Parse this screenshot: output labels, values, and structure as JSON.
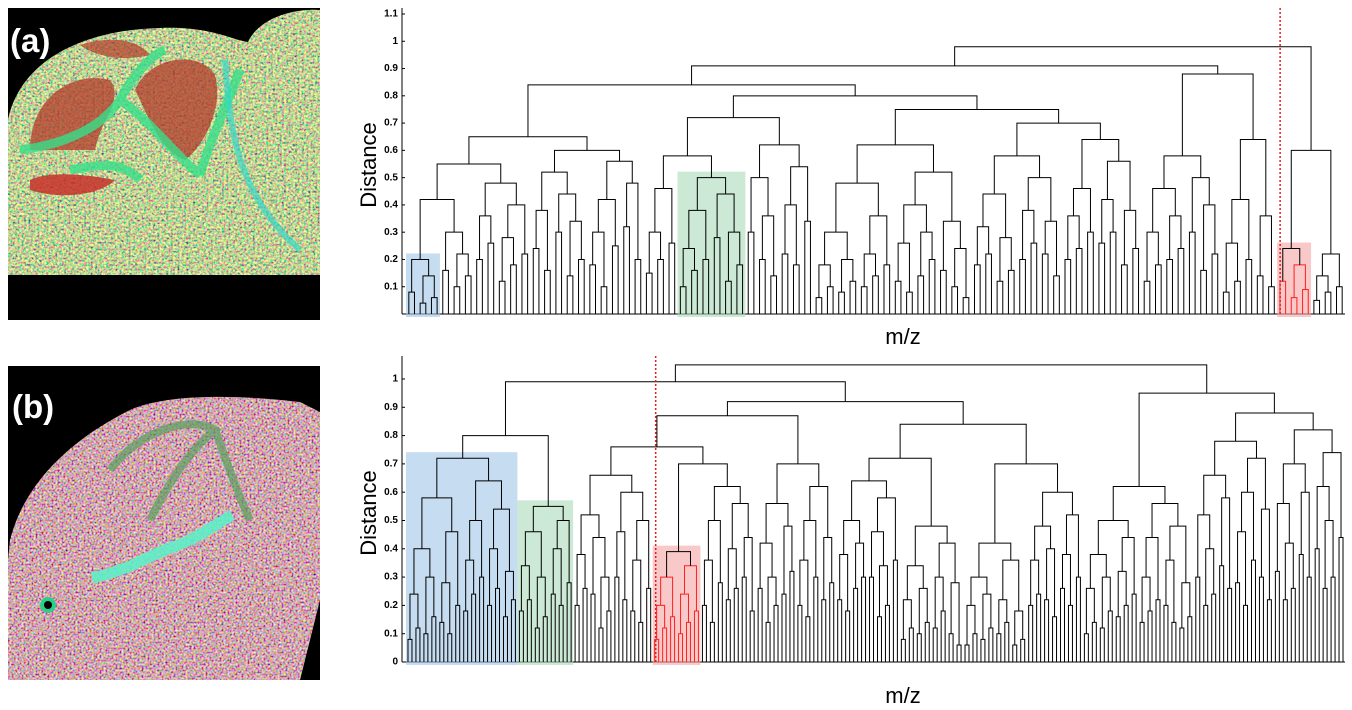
{
  "chart_data": [
    {
      "type": "dendrogram",
      "panel_label": "(a)",
      "y_label": "Distance",
      "x_label": "m/z",
      "ylim": [
        0,
        1.1
      ],
      "yticks": [
        0.1,
        0.2,
        0.3,
        0.4,
        0.5,
        0.6,
        0.7,
        0.8,
        0.9,
        1,
        1.1
      ],
      "tree": [
        0.98,
        [
          0.91,
          [
            0.84,
            [
              0.65,
              [
                0.55,
                [
                  0.42,
                  {
                    "h": 0.2,
                    "highlight": "#9fc5e8",
                    "c": [
                      0.08,
                      [
                        0.14,
                        0.04,
                        0.06
                      ]
                    ]
                  },
                  [
                    0.3,
                    0.16,
                    [
                      0.22,
                      0.1,
                      0.14
                    ]
                  ]
                ],
                [
                  0.48,
                  [
                    0.36,
                    0.2,
                    0.26
                  ],
                  [
                    0.4,
                    [
                      0.28,
                      0.12,
                      0.18
                    ],
                    0.22
                  ]
                ]
              ],
              [
                0.6,
                [
                  0.52,
                  [
                    0.38,
                    0.24,
                    0.16
                  ],
                  [
                    0.44,
                    0.3,
                    [
                      0.34,
                      0.14,
                      0.2
                    ]
                  ]
                ],
                [
                  0.56,
                  [
                    0.42,
                    [
                      0.3,
                      0.18,
                      0.1
                    ],
                    0.25
                  ],
                  [
                    0.48,
                    0.32,
                    0.2
                  ]
                ]
              ]
            ],
            [
              0.8,
              [
                0.72,
                [
                  0.58,
                  [
                    0.46,
                    [
                      0.3,
                      0.15,
                      0.2
                    ],
                    0.26
                  ],
                  {
                    "h": 0.5,
                    "highlight": "#a9dbb8",
                    "c": [
                      [
                        0.38,
                        [
                          0.24,
                          0.1,
                          0.16
                        ],
                        0.2
                      ],
                      [
                        0.44,
                        0.28,
                        [
                          0.3,
                          0.12,
                          0.18
                        ]
                      ]
                    ]
                  }
                ],
                [
                  0.62,
                  [
                    0.5,
                    0.3,
                    [
                      0.36,
                      0.2,
                      0.14
                    ]
                  ],
                  [
                    0.54,
                    [
                      0.4,
                      0.22,
                      0.18
                    ],
                    0.34
                  ]
                ]
              ],
              [
                0.75,
                [
                  0.62,
                  [
                    0.48,
                    [
                      0.3,
                      [
                        0.18,
                        0.06,
                        0.1
                      ],
                      [
                        0.2,
                        0.08,
                        0.12
                      ]
                    ],
                    [
                      0.36,
                      [
                        0.22,
                        0.1,
                        0.14
                      ],
                      0.18
                    ]
                  ],
                  [
                    0.52,
                    [
                      0.4,
                      [
                        0.26,
                        0.12,
                        0.08
                      ],
                      [
                        0.3,
                        0.14,
                        0.2
                      ]
                    ],
                    [
                      0.34,
                      0.16,
                      [
                        0.24,
                        0.1,
                        0.06
                      ]
                    ]
                  ]
                ],
                [
                  0.7,
                  [
                    0.58,
                    [
                      0.44,
                      [
                        0.32,
                        0.18,
                        0.22
                      ],
                      [
                        0.28,
                        0.12,
                        0.16
                      ]
                    ],
                    [
                      0.5,
                      [
                        0.38,
                        0.2,
                        0.26
                      ],
                      [
                        0.34,
                        0.22,
                        0.14
                      ]
                    ]
                  ],
                  [
                    0.64,
                    [
                      0.46,
                      [
                        0.36,
                        0.2,
                        0.24
                      ],
                      0.3
                    ],
                    [
                      0.56,
                      [
                        0.42,
                        0.26,
                        0.3
                      ],
                      [
                        0.38,
                        0.18,
                        0.24
                      ]
                    ]
                  ]
                ]
              ]
            ]
          ],
          [
            0.88,
            [
              0.58,
              [
                0.46,
                [
                  0.3,
                  0.12,
                  0.18
                ],
                [
                  0.36,
                  0.2,
                  0.24
                ]
              ],
              [
                0.5,
                0.3,
                [
                  0.4,
                  0.16,
                  0.22
                ]
              ]
            ],
            [
              0.64,
              [
                0.42,
                [
                  0.26,
                  0.08,
                  0.12
                ],
                0.2
              ],
              [
                0.36,
                0.14,
                0.1
              ]
            ]
          ]
        ],
        [
          0.6,
          {
            "h": 0.24,
            "highlight": "#f5a3a3",
            "line_color": "#ff2020",
            "c": [
              0.12,
              [
                0.18,
                0.06,
                0.09
              ]
            ]
          },
          [
            0.22,
            [
              0.14,
              0.05,
              0.08
            ],
            0.1
          ]
        ]
      ]
    },
    {
      "type": "dendrogram",
      "panel_label": "(b)",
      "y_label": "Distance",
      "x_label": "m/z",
      "ylim": [
        0,
        1.06
      ],
      "yticks": [
        0,
        0.1,
        0.2,
        0.3,
        0.4,
        0.5,
        0.6,
        0.7,
        0.8,
        0.9,
        1
      ],
      "tree": [
        1.05,
        [
          0.99,
          [
            0.8,
            {
              "h": 0.72,
              "highlight": "#9fc5e8",
              "c": [
                [
                  0.58,
                  [
                    0.4,
                    [
                      0.24,
                      0.08,
                      0.12
                    ],
                    [
                      0.3,
                      0.1,
                      0.16
                    ]
                  ],
                  [
                    0.46,
                    [
                      0.28,
                      0.14,
                      0.1
                    ],
                    0.2
                  ]
                ],
                [
                  0.64,
                  [
                    0.5,
                    [
                      0.36,
                      0.18,
                      0.24
                    ],
                    0.3
                  ],
                  [
                    0.54,
                    [
                      0.4,
                      0.2,
                      0.26
                    ],
                    [
                      0.32,
                      0.16,
                      0.22
                    ]
                  ]
                ]
              ]
            },
            {
              "h": 0.55,
              "highlight": "#a9dbb8",
              "c": [
                [
                  0.46,
                  [
                    0.34,
                    0.18,
                    0.22
                  ],
                  [
                    0.3,
                    0.12,
                    0.16
                  ]
                ],
                [
                  0.5,
                  [
                    0.4,
                    0.24,
                    0.2
                  ],
                  0.28
                ]
              ]
            }
          ],
          [
            0.92,
            [
              0.87,
              [
                0.76,
                [
                  0.66,
                  [
                    0.52,
                    [
                      0.38,
                      0.2,
                      0.26
                    ],
                    [
                      0.44,
                      0.24,
                      [
                        0.3,
                        0.12,
                        0.18
                      ]
                    ]
                  ],
                  [
                    0.6,
                    [
                      0.46,
                      0.3,
                      0.22
                    ],
                    [
                      0.5,
                      [
                        0.36,
                        0.18,
                        0.14
                      ],
                      0.26
                    ]
                  ]
                ],
                [
                  0.7,
                  {
                    "h": 0.39,
                    "highlight": "#f5a3a3",
                    "line_color": "#ff2020",
                    "c": [
                      [
                        0.3,
                        [
                          0.2,
                          0.08,
                          0.12
                        ],
                        0.16
                      ],
                      [
                        0.34,
                        [
                          0.24,
                          0.1,
                          0.14
                        ],
                        0.18
                      ]
                    ]
                  },
                  [
                    0.62,
                    [
                      0.5,
                      [
                        0.36,
                        0.2,
                        0.14
                      ],
                      0.28
                    ],
                    [
                      0.56,
                      [
                        0.4,
                        0.22,
                        0.26
                      ],
                      [
                        0.44,
                        0.3,
                        0.18
                      ]
                    ]
                  ]
                ]
              ],
              [
                0.7,
                [
                  0.56,
                  [
                    0.42,
                    0.26,
                    [
                      0.3,
                      0.14,
                      0.2
                    ]
                  ],
                  [
                    0.48,
                    0.24,
                    0.32
                  ]
                ],
                [
                  0.62,
                  [
                    0.5,
                    [
                      0.36,
                      0.2,
                      0.16
                    ],
                    0.3
                  ],
                  [
                    0.44,
                    0.22,
                    0.28
                  ]
                ]
              ]
            ],
            [
              0.84,
              [
                0.72,
                [
                  0.64,
                  [
                    0.5,
                    [
                      0.38,
                      0.22,
                      0.18
                    ],
                    [
                      0.42,
                      0.26,
                      0.3
                    ]
                  ],
                  [
                    0.58,
                    [
                      0.46,
                      0.3,
                      [
                        0.34,
                        0.16,
                        0.2
                      ]
                    ],
                    0.36
                  ]
                ],
                [
                  0.48,
                  [
                    0.34,
                    [
                      0.22,
                      0.08,
                      0.12
                    ],
                    [
                      0.26,
                      0.1,
                      0.14
                    ]
                  ],
                  [
                    0.42,
                    [
                      0.3,
                      0.12,
                      0.18
                    ],
                    [
                      0.28,
                      0.1,
                      0.06
                    ]
                  ]
                ]
              ],
              [
                0.7,
                [
                  0.42,
                  [
                    0.3,
                    [
                      0.2,
                      0.06,
                      0.1
                    ],
                    [
                      0.24,
                      0.08,
                      0.12
                    ]
                  ],
                  [
                    0.36,
                    [
                      0.22,
                      0.1,
                      0.14
                    ],
                    [
                      0.18,
                      0.06,
                      0.08
                    ]
                  ]
                ],
                [
                  0.6,
                  [
                    0.48,
                    [
                      0.36,
                      0.2,
                      0.24
                    ],
                    [
                      0.4,
                      0.22,
                      0.16
                    ]
                  ],
                  [
                    0.52,
                    [
                      0.38,
                      0.26,
                      0.2
                    ],
                    0.3
                  ]
                ]
              ]
            ]
          ]
        ],
        [
          0.95,
          [
            0.62,
            [
              0.5,
              [
                0.38,
                [
                  0.26,
                  0.1,
                  0.14
                ],
                [
                  0.3,
                  0.12,
                  0.18
                ]
              ],
              [
                0.44,
                [
                  0.32,
                  0.16,
                  0.2
                ],
                0.24
              ]
            ],
            [
              0.56,
              [
                0.44,
                [
                  0.3,
                  0.14,
                  0.18
                ],
                0.22
              ],
              [
                0.48,
                [
                  0.36,
                  0.2,
                  0.14
                ],
                [
                  0.28,
                  0.12,
                  0.16
                ]
              ]
            ]
          ],
          [
            0.88,
            [
              0.78,
              [
                0.66,
                [
                  0.52,
                  0.3,
                  [
                    0.4,
                    0.2,
                    0.24
                  ]
                ],
                [
                  0.58,
                  0.34,
                  0.26
                ]
              ],
              [
                0.72,
                [
                  0.6,
                  [
                    0.46,
                    0.28,
                    0.2
                  ],
                  0.36
                ],
                [
                  0.54,
                  0.3,
                  0.22
                ]
              ]
            ],
            [
              0.82,
              [
                0.7,
                [
                  0.56,
                  0.32,
                  [
                    0.42,
                    0.22,
                    0.26
                  ]
                ],
                [
                  0.6,
                  0.38,
                  0.3
                ]
              ],
              [
                0.74,
                [
                  0.62,
                  0.4,
                  [
                    0.5,
                    0.26,
                    0.3
                  ]
                ],
                0.44
              ]
            ]
          ]
        ]
      ]
    }
  ]
}
